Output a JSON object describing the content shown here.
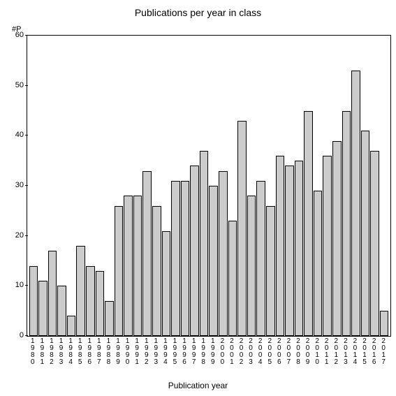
{
  "chart": {
    "type": "bar",
    "title": "Publications per year in class",
    "title_fontsize": 14,
    "y_axis_unit": "#P",
    "x_axis_label": "Publication year",
    "label_fontsize": 12,
    "tick_fontsize": 11,
    "background_color": "#ffffff",
    "bar_fill_color": "#cccccc",
    "bar_border_color": "#000000",
    "axis_color": "#000000",
    "ylim": [
      0,
      60
    ],
    "ytick_step": 10,
    "yticks": [
      0,
      10,
      20,
      30,
      40,
      50,
      60
    ],
    "categories": [
      "1980",
      "1981",
      "1982",
      "1983",
      "1984",
      "1985",
      "1986",
      "1987",
      "1988",
      "1989",
      "1990",
      "1991",
      "1992",
      "1993",
      "1994",
      "1995",
      "1996",
      "1997",
      "1998",
      "1999",
      "2000",
      "2001",
      "2002",
      "2003",
      "2004",
      "2005",
      "2006",
      "2007",
      "2008",
      "2009",
      "2010",
      "2011",
      "2012",
      "2013",
      "2014",
      "2015",
      "2016",
      "2017"
    ],
    "values": [
      14,
      11,
      17,
      10,
      4,
      18,
      14,
      13,
      7,
      26,
      28,
      28,
      33,
      26,
      21,
      31,
      31,
      34,
      37,
      30,
      33,
      23,
      43,
      28,
      31,
      26,
      36,
      34,
      35,
      45,
      29,
      36,
      39,
      45,
      53,
      41,
      37,
      5
    ],
    "bar_width": 1.0
  }
}
